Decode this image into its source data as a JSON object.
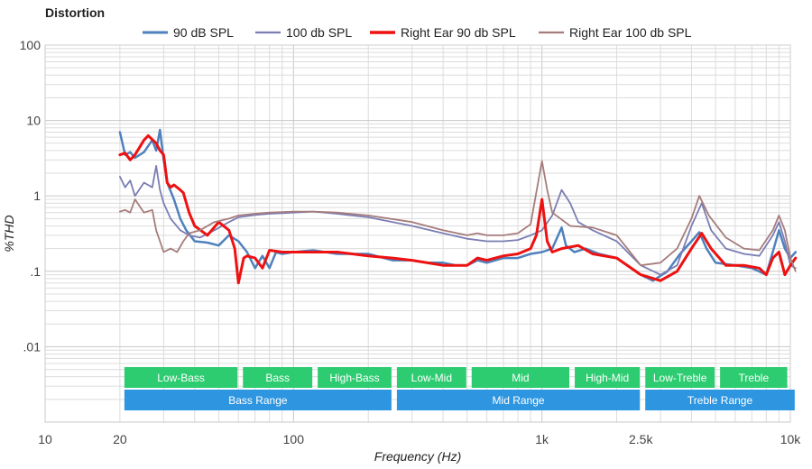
{
  "chart_data": {
    "type": "line",
    "title": "Distortion",
    "xlabel": "Frequency (Hz)",
    "ylabel": "%THD",
    "x_scale": "log",
    "y_scale": "log",
    "xlim": [
      10,
      10000
    ],
    "ylim": [
      0.001,
      100
    ],
    "x_ticks": [
      {
        "value": 10,
        "label": "10"
      },
      {
        "value": 20,
        "label": "20"
      },
      {
        "value": 100,
        "label": "100"
      },
      {
        "value": 1000,
        "label": "1k"
      },
      {
        "value": 2500,
        "label": "2.5k"
      },
      {
        "value": 10000,
        "label": "10k"
      }
    ],
    "y_ticks": [
      {
        "value": 100,
        "label": "100"
      },
      {
        "value": 10,
        "label": "10"
      },
      {
        "value": 1,
        "label": "1"
      },
      {
        "value": 0.1,
        "label": ".1"
      },
      {
        "value": 0.01,
        "label": ".01"
      }
    ],
    "grid": true,
    "legend_position": "top-center",
    "series": [
      {
        "name": "90 dB SPL",
        "color": "#4f81bd",
        "width": 2.5,
        "points": [
          [
            20,
            7.0
          ],
          [
            21,
            3.5
          ],
          [
            22,
            3.8
          ],
          [
            23,
            3.2
          ],
          [
            25,
            3.8
          ],
          [
            27,
            5.5
          ],
          [
            28,
            4.0
          ],
          [
            29,
            7.5
          ],
          [
            30,
            3.0
          ],
          [
            31,
            1.5
          ],
          [
            33,
            0.9
          ],
          [
            35,
            0.5
          ],
          [
            37,
            0.35
          ],
          [
            40,
            0.25
          ],
          [
            45,
            0.24
          ],
          [
            50,
            0.22
          ],
          [
            55,
            0.3
          ],
          [
            60,
            0.25
          ],
          [
            65,
            0.18
          ],
          [
            70,
            0.11
          ],
          [
            75,
            0.16
          ],
          [
            80,
            0.11
          ],
          [
            85,
            0.18
          ],
          [
            90,
            0.17
          ],
          [
            100,
            0.18
          ],
          [
            120,
            0.19
          ],
          [
            150,
            0.17
          ],
          [
            200,
            0.17
          ],
          [
            250,
            0.14
          ],
          [
            300,
            0.14
          ],
          [
            350,
            0.13
          ],
          [
            400,
            0.13
          ],
          [
            450,
            0.12
          ],
          [
            500,
            0.12
          ],
          [
            550,
            0.14
          ],
          [
            600,
            0.13
          ],
          [
            700,
            0.15
          ],
          [
            800,
            0.15
          ],
          [
            900,
            0.17
          ],
          [
            1000,
            0.18
          ],
          [
            1100,
            0.2
          ],
          [
            1200,
            0.38
          ],
          [
            1250,
            0.22
          ],
          [
            1350,
            0.18
          ],
          [
            1500,
            0.2
          ],
          [
            1700,
            0.17
          ],
          [
            2000,
            0.15
          ],
          [
            2200,
            0.12
          ],
          [
            2500,
            0.09
          ],
          [
            2800,
            0.075
          ],
          [
            3200,
            0.1
          ],
          [
            3600,
            0.17
          ],
          [
            4000,
            0.25
          ],
          [
            4300,
            0.33
          ],
          [
            4600,
            0.2
          ],
          [
            5000,
            0.13
          ],
          [
            6000,
            0.12
          ],
          [
            7000,
            0.11
          ],
          [
            8000,
            0.09
          ],
          [
            9000,
            0.35
          ],
          [
            9500,
            0.2
          ],
          [
            10000,
            0.15
          ],
          [
            10500,
            0.18
          ]
        ]
      },
      {
        "name": "100 db SPL",
        "color": "#7b7db4",
        "width": 1.8,
        "points": [
          [
            20,
            1.8
          ],
          [
            21,
            1.3
          ],
          [
            22,
            1.6
          ],
          [
            23,
            1.0
          ],
          [
            25,
            1.5
          ],
          [
            27,
            1.3
          ],
          [
            28,
            2.5
          ],
          [
            29,
            1.2
          ],
          [
            30,
            0.8
          ],
          [
            32,
            0.5
          ],
          [
            35,
            0.35
          ],
          [
            38,
            0.3
          ],
          [
            42,
            0.28
          ],
          [
            48,
            0.35
          ],
          [
            55,
            0.45
          ],
          [
            60,
            0.52
          ],
          [
            70,
            0.56
          ],
          [
            80,
            0.58
          ],
          [
            90,
            0.59
          ],
          [
            100,
            0.6
          ],
          [
            120,
            0.62
          ],
          [
            150,
            0.58
          ],
          [
            200,
            0.52
          ],
          [
            300,
            0.4
          ],
          [
            400,
            0.32
          ],
          [
            500,
            0.27
          ],
          [
            600,
            0.25
          ],
          [
            700,
            0.25
          ],
          [
            800,
            0.26
          ],
          [
            900,
            0.3
          ],
          [
            1000,
            0.35
          ],
          [
            1100,
            0.55
          ],
          [
            1200,
            1.2
          ],
          [
            1300,
            0.8
          ],
          [
            1400,
            0.45
          ],
          [
            1600,
            0.35
          ],
          [
            2000,
            0.25
          ],
          [
            2500,
            0.12
          ],
          [
            3000,
            0.09
          ],
          [
            3500,
            0.12
          ],
          [
            4000,
            0.4
          ],
          [
            4400,
            0.8
          ],
          [
            4800,
            0.35
          ],
          [
            5500,
            0.2
          ],
          [
            6500,
            0.17
          ],
          [
            7500,
            0.16
          ],
          [
            8500,
            0.3
          ],
          [
            9000,
            0.45
          ],
          [
            9500,
            0.25
          ],
          [
            10000,
            0.12
          ],
          [
            10500,
            0.11
          ]
        ]
      },
      {
        "name": "Right Ear 90 db SPL",
        "color": "#ee1111",
        "width": 3,
        "points": [
          [
            20,
            3.5
          ],
          [
            21,
            3.7
          ],
          [
            22,
            3.0
          ],
          [
            23,
            3.5
          ],
          [
            25,
            5.5
          ],
          [
            26,
            6.3
          ],
          [
            28,
            5.0
          ],
          [
            29,
            4.0
          ],
          [
            30,
            3.5
          ],
          [
            31,
            1.5
          ],
          [
            32,
            1.3
          ],
          [
            33,
            1.4
          ],
          [
            35,
            1.2
          ],
          [
            36,
            1.1
          ],
          [
            38,
            0.6
          ],
          [
            40,
            0.4
          ],
          [
            45,
            0.3
          ],
          [
            50,
            0.45
          ],
          [
            55,
            0.35
          ],
          [
            58,
            0.2
          ],
          [
            60,
            0.07
          ],
          [
            63,
            0.15
          ],
          [
            65,
            0.16
          ],
          [
            70,
            0.15
          ],
          [
            75,
            0.11
          ],
          [
            80,
            0.19
          ],
          [
            90,
            0.18
          ],
          [
            100,
            0.18
          ],
          [
            120,
            0.18
          ],
          [
            150,
            0.18
          ],
          [
            200,
            0.16
          ],
          [
            250,
            0.15
          ],
          [
            300,
            0.14
          ],
          [
            400,
            0.12
          ],
          [
            500,
            0.12
          ],
          [
            550,
            0.15
          ],
          [
            600,
            0.14
          ],
          [
            700,
            0.16
          ],
          [
            800,
            0.17
          ],
          [
            900,
            0.2
          ],
          [
            950,
            0.3
          ],
          [
            1000,
            0.9
          ],
          [
            1050,
            0.25
          ],
          [
            1100,
            0.18
          ],
          [
            1200,
            0.2
          ],
          [
            1400,
            0.22
          ],
          [
            1600,
            0.17
          ],
          [
            2000,
            0.15
          ],
          [
            2500,
            0.09
          ],
          [
            3000,
            0.075
          ],
          [
            3500,
            0.1
          ],
          [
            4000,
            0.2
          ],
          [
            4400,
            0.32
          ],
          [
            4800,
            0.2
          ],
          [
            5500,
            0.12
          ],
          [
            6500,
            0.12
          ],
          [
            7500,
            0.11
          ],
          [
            8000,
            0.09
          ],
          [
            8500,
            0.15
          ],
          [
            9000,
            0.18
          ],
          [
            9500,
            0.09
          ],
          [
            10000,
            0.12
          ],
          [
            10500,
            0.15
          ]
        ]
      },
      {
        "name": "Right Ear 100 db SPL",
        "color": "#a67c7c",
        "width": 1.8,
        "points": [
          [
            20,
            0.62
          ],
          [
            21,
            0.65
          ],
          [
            22,
            0.6
          ],
          [
            23,
            0.9
          ],
          [
            25,
            0.6
          ],
          [
            27,
            0.65
          ],
          [
            28,
            0.35
          ],
          [
            29,
            0.25
          ],
          [
            30,
            0.18
          ],
          [
            32,
            0.2
          ],
          [
            34,
            0.18
          ],
          [
            36,
            0.25
          ],
          [
            38,
            0.32
          ],
          [
            42,
            0.35
          ],
          [
            48,
            0.45
          ],
          [
            55,
            0.5
          ],
          [
            60,
            0.55
          ],
          [
            70,
            0.58
          ],
          [
            80,
            0.6
          ],
          [
            90,
            0.61
          ],
          [
            100,
            0.62
          ],
          [
            120,
            0.62
          ],
          [
            150,
            0.6
          ],
          [
            200,
            0.55
          ],
          [
            300,
            0.45
          ],
          [
            400,
            0.35
          ],
          [
            500,
            0.3
          ],
          [
            550,
            0.32
          ],
          [
            600,
            0.3
          ],
          [
            700,
            0.3
          ],
          [
            800,
            0.32
          ],
          [
            900,
            0.42
          ],
          [
            1000,
            2.9
          ],
          [
            1050,
            1.2
          ],
          [
            1100,
            0.6
          ],
          [
            1300,
            0.4
          ],
          [
            1600,
            0.38
          ],
          [
            2000,
            0.3
          ],
          [
            2500,
            0.12
          ],
          [
            3000,
            0.13
          ],
          [
            3500,
            0.2
          ],
          [
            4000,
            0.5
          ],
          [
            4300,
            1.0
          ],
          [
            4700,
            0.55
          ],
          [
            5500,
            0.28
          ],
          [
            6500,
            0.2
          ],
          [
            7500,
            0.19
          ],
          [
            8500,
            0.35
          ],
          [
            9000,
            0.55
          ],
          [
            9500,
            0.35
          ],
          [
            10000,
            0.15
          ],
          [
            10500,
            0.1
          ]
        ]
      }
    ],
    "bands": [
      {
        "row": 1,
        "label": "Low-Bass",
        "from": 20,
        "to": 60,
        "color": "#2ecc71"
      },
      {
        "row": 1,
        "label": "Bass",
        "from": 60,
        "to": 120,
        "color": "#2ecc71"
      },
      {
        "row": 1,
        "label": "High-Bass",
        "from": 120,
        "to": 250,
        "color": "#2ecc71"
      },
      {
        "row": 1,
        "label": "Low-Mid",
        "from": 250,
        "to": 500,
        "color": "#2ecc71"
      },
      {
        "row": 1,
        "label": "Mid",
        "from": 500,
        "to": 1300,
        "color": "#2ecc71"
      },
      {
        "row": 1,
        "label": "High-Mid",
        "from": 1300,
        "to": 2500,
        "color": "#2ecc71"
      },
      {
        "row": 1,
        "label": "Low-Treble",
        "from": 2500,
        "to": 5000,
        "color": "#2ecc71"
      },
      {
        "row": 1,
        "label": "Treble",
        "from": 5000,
        "to": 9800,
        "color": "#2ecc71"
      },
      {
        "row": 2,
        "label": "Bass Range",
        "from": 20,
        "to": 250,
        "color": "#2e96e0"
      },
      {
        "row": 2,
        "label": "Mid Range",
        "from": 250,
        "to": 2500,
        "color": "#2e96e0"
      },
      {
        "row": 2,
        "label": "Treble Range",
        "from": 2500,
        "to": 10500,
        "color": "#2e96e0"
      }
    ]
  }
}
